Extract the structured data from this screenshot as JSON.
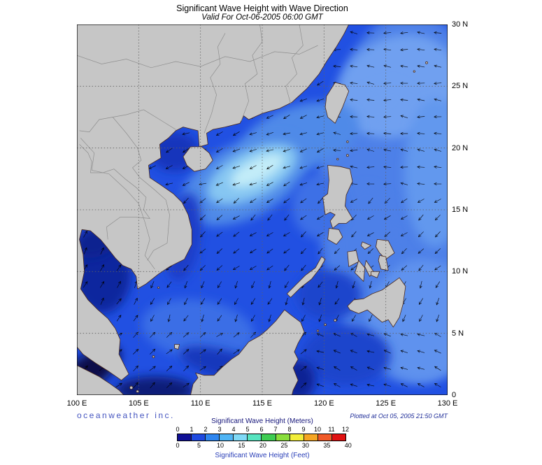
{
  "header": {
    "title": "Significant Wave Height with Wave Direction",
    "subtitle": "Valid For Oct-06-2005 06:00 GMT"
  },
  "axes": {
    "x_ticks": [
      "100 E",
      "105 E",
      "110 E",
      "115 E",
      "120 E",
      "125 E",
      "130 E"
    ],
    "y_ticks": [
      "30 N",
      "25 N",
      "20 N",
      "15 N",
      "10 N",
      "5 N",
      "0"
    ]
  },
  "footer": {
    "brand": "oceanweather inc.",
    "plotted": "Plotted at Oct 05, 2005 21:50 GMT"
  },
  "legend": {
    "meters_label": "Significant Wave Height (Meters)",
    "feet_label": "Significant Wave Height (Feet)",
    "meters_ticks": [
      0,
      1,
      2,
      3,
      4,
      5,
      6,
      7,
      8,
      9,
      10,
      11,
      12
    ],
    "feet_ticks": [
      0,
      5,
      10,
      15,
      20,
      25,
      30,
      35,
      40
    ],
    "colors": [
      "#101095",
      "#1f4ae0",
      "#2e86f0",
      "#4fb4f4",
      "#7fd9f6",
      "#57e4c0",
      "#3ecc52",
      "#8ade3c",
      "#f2ee3a",
      "#f5a623",
      "#f05a28",
      "#e01010"
    ],
    "ocean_base_color": "#2150e2"
  }
}
